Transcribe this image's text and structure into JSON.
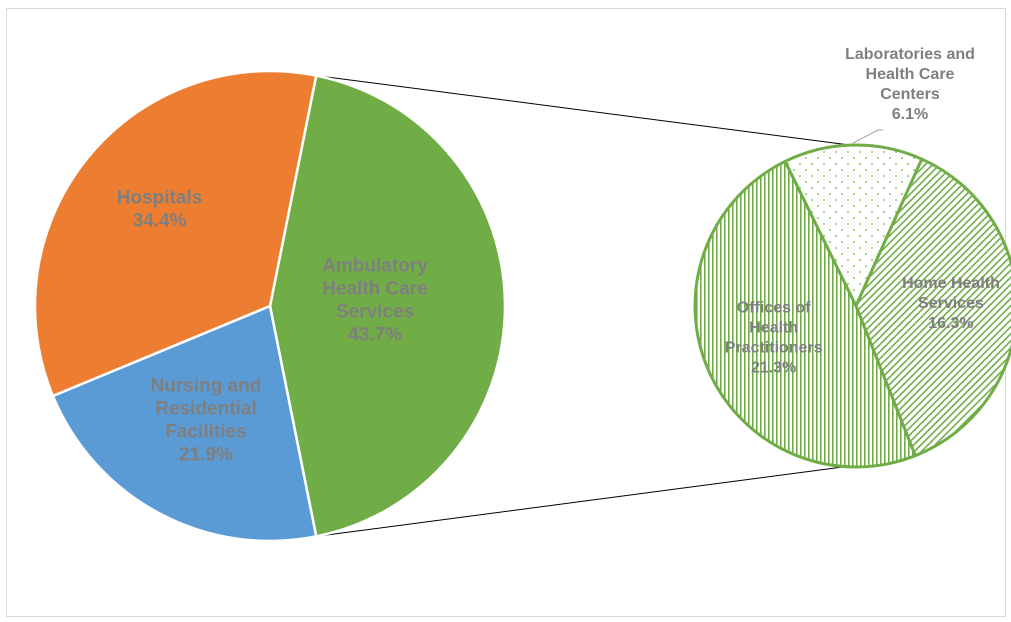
{
  "chart_data": {
    "type": "pie",
    "main_pie": {
      "slices": [
        {
          "label": "Ambulatory Health Care Services",
          "label_lines": [
            "Ambulatory",
            "Health Care",
            "Services"
          ],
          "value": 43.7,
          "value_label": "43.7%",
          "color": "#70ad47"
        },
        {
          "label": "Nursing and Residential Facilities",
          "label_lines": [
            "Nursing and",
            "Residential",
            "Facilities"
          ],
          "value": 21.9,
          "value_label": "21.9%",
          "color": "#5b9bd5"
        },
        {
          "label": "Hospitals",
          "label_lines": [
            "Hospitals"
          ],
          "value": 34.4,
          "value_label": "34.4%",
          "color": "#ed7d31"
        }
      ]
    },
    "sub_pie": {
      "parent": "Ambulatory Health Care Services",
      "slices": [
        {
          "label": "Laboratories and Health Care Centers",
          "label_lines": [
            "Laboratories and",
            "Health Care",
            "Centers"
          ],
          "value": 6.1,
          "value_label": "6.1%",
          "pattern": "dots"
        },
        {
          "label": "Home Health Services",
          "label_lines": [
            "Home Health",
            "Services"
          ],
          "value": 16.3,
          "value_label": "16.3%",
          "pattern": "diagonal"
        },
        {
          "label": "Offices of Health Practitioners",
          "label_lines": [
            "Offices of",
            "Health",
            "Practitioners"
          ],
          "value": 21.3,
          "value_label": "21.3%",
          "pattern": "vertical"
        }
      ],
      "color": "#70ad47"
    },
    "label_color": "#7f7f7f",
    "legend": "none"
  }
}
